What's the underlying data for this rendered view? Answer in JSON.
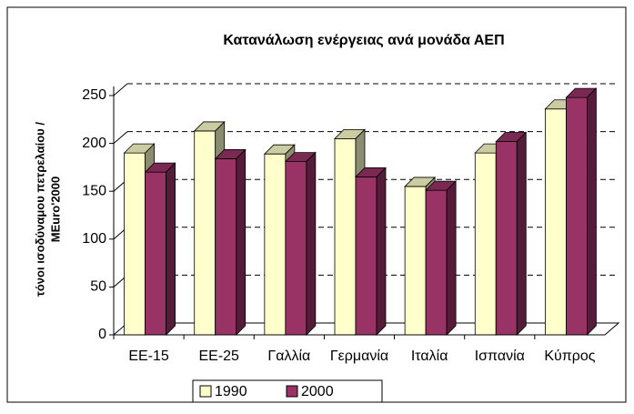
{
  "chart_data": {
    "type": "bar3d",
    "title": "Κατανάλωση ενέργειας ανά μονάδα ΑΕΠ",
    "ylabel": [
      "τόνοι ισοδύναμου πετρελαίου /",
      "MEuro'2000"
    ],
    "categories": [
      "ΕΕ-15",
      "ΕΕ-25",
      "Γαλλία",
      "Γερμανία",
      "Ιταλία",
      "Ισπανία",
      "Κύπρος"
    ],
    "series": [
      {
        "name": "1990",
        "color": "#ffffcc",
        "values": [
          190,
          213,
          189,
          205,
          155,
          190,
          236
        ]
      },
      {
        "name": "2000",
        "color": "#993366",
        "values": [
          170,
          184,
          181,
          165,
          151,
          202,
          248
        ]
      }
    ],
    "ylim": [
      0,
      250
    ],
    "yticks": [
      0,
      50,
      100,
      150,
      200,
      250
    ],
    "grid": true,
    "legend": "bottom"
  }
}
